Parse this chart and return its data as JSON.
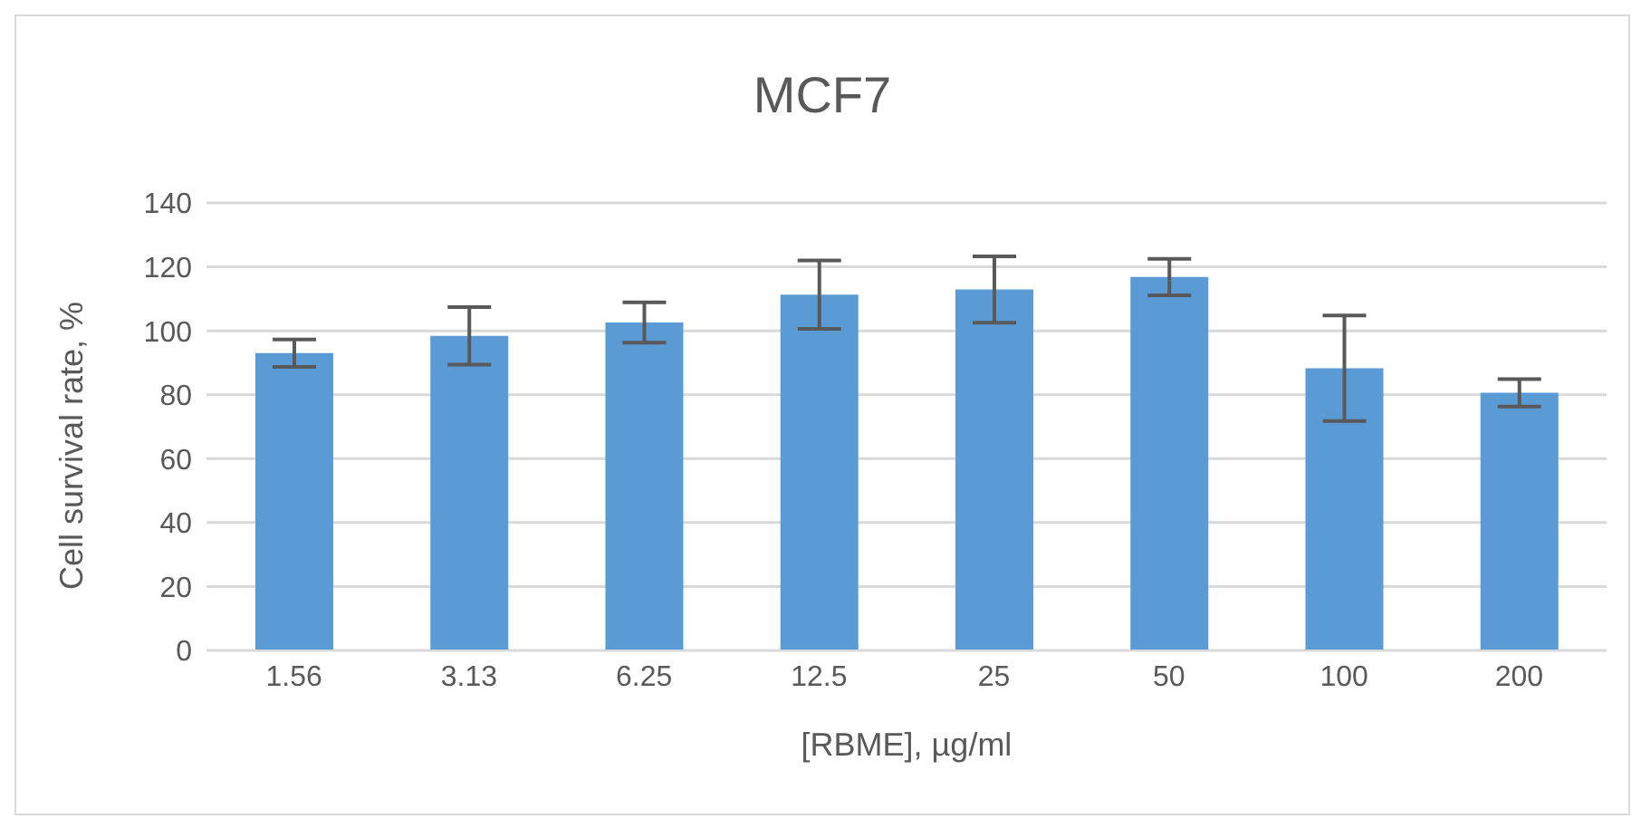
{
  "chart_data": {
    "type": "bar",
    "title": "MCF7",
    "xlabel": "[RBME], µg/ml",
    "ylabel": "Cell survival rate, %",
    "categories": [
      "1.56",
      "3.13",
      "6.25",
      "12.5",
      "25",
      "50",
      "100",
      "200"
    ],
    "values": [
      93,
      98.4,
      102.6,
      111.3,
      112.9,
      116.8,
      88.3,
      80.6
    ],
    "errors": [
      4.3,
      9,
      6.3,
      10.7,
      10.4,
      5.7,
      16.5,
      4.3
    ],
    "color": "#5b9bd5",
    "ylim": [
      0,
      140
    ],
    "yticks": [
      0,
      20,
      40,
      60,
      80,
      100,
      120,
      140
    ],
    "grid": "y"
  }
}
